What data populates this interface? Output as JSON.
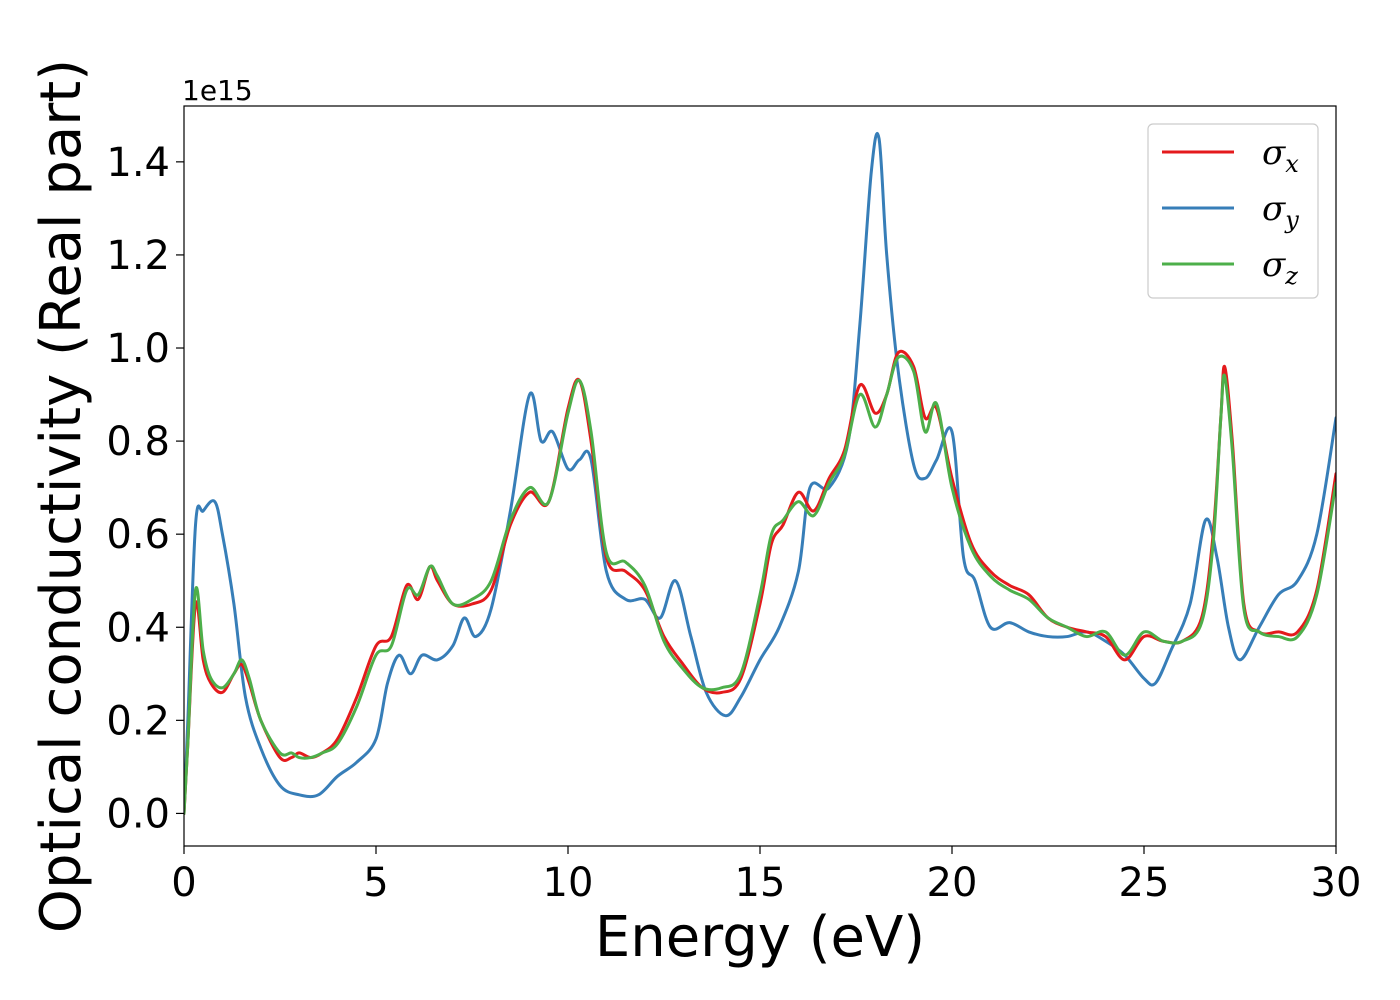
{
  "chart_data": {
    "type": "line",
    "title": "",
    "xlabel": "Energy (eV)",
    "ylabel": "Optical conductivity (Real part)",
    "y_offset_text": "1e15",
    "xlim": [
      0,
      30
    ],
    "ylim": [
      -0.07,
      1.52
    ],
    "xticks": [
      0,
      5,
      10,
      15,
      20,
      25,
      30
    ],
    "xtick_labels": [
      "0",
      "5",
      "10",
      "15",
      "20",
      "25",
      "30"
    ],
    "yticks": [
      0.0,
      0.2,
      0.4,
      0.6,
      0.8,
      1.0,
      1.2,
      1.4
    ],
    "ytick_labels": [
      "0.0",
      "0.2",
      "0.4",
      "0.6",
      "0.8",
      "1.0",
      "1.2",
      "1.4"
    ],
    "grid": false,
    "legend_position": "top-right",
    "series": [
      {
        "name": "σx",
        "symbol": "σ",
        "subscript": "x",
        "color": "#e41a1c",
        "points": [
          [
            0,
            0
          ],
          [
            0.1,
            0.15
          ],
          [
            0.3,
            0.45
          ],
          [
            0.5,
            0.33
          ],
          [
            0.7,
            0.28
          ],
          [
            1.0,
            0.26
          ],
          [
            1.3,
            0.3
          ],
          [
            1.5,
            0.32
          ],
          [
            1.7,
            0.28
          ],
          [
            2.0,
            0.2
          ],
          [
            2.5,
            0.12
          ],
          [
            2.8,
            0.12
          ],
          [
            3.0,
            0.13
          ],
          [
            3.3,
            0.12
          ],
          [
            3.6,
            0.13
          ],
          [
            4.0,
            0.16
          ],
          [
            4.5,
            0.25
          ],
          [
            5.0,
            0.36
          ],
          [
            5.4,
            0.38
          ],
          [
            5.8,
            0.49
          ],
          [
            6.1,
            0.46
          ],
          [
            6.4,
            0.53
          ],
          [
            6.6,
            0.5
          ],
          [
            7.0,
            0.45
          ],
          [
            7.5,
            0.45
          ],
          [
            8.0,
            0.48
          ],
          [
            8.5,
            0.62
          ],
          [
            9.0,
            0.69
          ],
          [
            9.5,
            0.67
          ],
          [
            10.0,
            0.87
          ],
          [
            10.3,
            0.93
          ],
          [
            10.6,
            0.8
          ],
          [
            11.0,
            0.55
          ],
          [
            11.5,
            0.52
          ],
          [
            12.0,
            0.48
          ],
          [
            12.5,
            0.38
          ],
          [
            13.0,
            0.32
          ],
          [
            13.5,
            0.27
          ],
          [
            14.0,
            0.26
          ],
          [
            14.5,
            0.29
          ],
          [
            15.0,
            0.45
          ],
          [
            15.3,
            0.58
          ],
          [
            15.6,
            0.62
          ],
          [
            16.0,
            0.69
          ],
          [
            16.4,
            0.65
          ],
          [
            16.8,
            0.72
          ],
          [
            17.2,
            0.78
          ],
          [
            17.6,
            0.92
          ],
          [
            18.0,
            0.86
          ],
          [
            18.3,
            0.9
          ],
          [
            18.6,
            0.99
          ],
          [
            19.0,
            0.96
          ],
          [
            19.3,
            0.85
          ],
          [
            19.6,
            0.87
          ],
          [
            20.0,
            0.72
          ],
          [
            20.5,
            0.58
          ],
          [
            21.0,
            0.52
          ],
          [
            21.5,
            0.49
          ],
          [
            22.0,
            0.47
          ],
          [
            22.5,
            0.42
          ],
          [
            23.0,
            0.4
          ],
          [
            23.5,
            0.39
          ],
          [
            24.0,
            0.38
          ],
          [
            24.5,
            0.33
          ],
          [
            25.0,
            0.38
          ],
          [
            25.5,
            0.37
          ],
          [
            26.0,
            0.37
          ],
          [
            26.5,
            0.42
          ],
          [
            26.8,
            0.6
          ],
          [
            27.0,
            0.85
          ],
          [
            27.1,
            0.96
          ],
          [
            27.3,
            0.8
          ],
          [
            27.6,
            0.45
          ],
          [
            28.0,
            0.39
          ],
          [
            28.5,
            0.39
          ],
          [
            29.0,
            0.39
          ],
          [
            29.5,
            0.48
          ],
          [
            30.0,
            0.73
          ]
        ]
      },
      {
        "name": "σy",
        "symbol": "σ",
        "subscript": "y",
        "color": "#377eb8",
        "points": [
          [
            0,
            0
          ],
          [
            0.1,
            0.2
          ],
          [
            0.3,
            0.62
          ],
          [
            0.5,
            0.65
          ],
          [
            0.8,
            0.67
          ],
          [
            1.0,
            0.6
          ],
          [
            1.3,
            0.45
          ],
          [
            1.6,
            0.25
          ],
          [
            2.0,
            0.14
          ],
          [
            2.5,
            0.06
          ],
          [
            3.0,
            0.04
          ],
          [
            3.5,
            0.04
          ],
          [
            4.0,
            0.08
          ],
          [
            4.5,
            0.11
          ],
          [
            5.0,
            0.16
          ],
          [
            5.3,
            0.28
          ],
          [
            5.6,
            0.34
          ],
          [
            5.9,
            0.3
          ],
          [
            6.2,
            0.34
          ],
          [
            6.6,
            0.33
          ],
          [
            7.0,
            0.36
          ],
          [
            7.3,
            0.42
          ],
          [
            7.6,
            0.38
          ],
          [
            8.0,
            0.44
          ],
          [
            8.5,
            0.65
          ],
          [
            9.0,
            0.9
          ],
          [
            9.3,
            0.8
          ],
          [
            9.6,
            0.82
          ],
          [
            10.0,
            0.74
          ],
          [
            10.3,
            0.76
          ],
          [
            10.6,
            0.76
          ],
          [
            11.0,
            0.52
          ],
          [
            11.5,
            0.46
          ],
          [
            12.0,
            0.46
          ],
          [
            12.4,
            0.42
          ],
          [
            12.8,
            0.5
          ],
          [
            13.2,
            0.38
          ],
          [
            13.6,
            0.26
          ],
          [
            14.1,
            0.21
          ],
          [
            14.5,
            0.25
          ],
          [
            15.0,
            0.33
          ],
          [
            15.5,
            0.4
          ],
          [
            16.0,
            0.52
          ],
          [
            16.3,
            0.7
          ],
          [
            16.8,
            0.7
          ],
          [
            17.3,
            0.8
          ],
          [
            17.6,
            1.05
          ],
          [
            17.9,
            1.38
          ],
          [
            18.1,
            1.45
          ],
          [
            18.3,
            1.2
          ],
          [
            18.6,
            0.95
          ],
          [
            19.0,
            0.75
          ],
          [
            19.3,
            0.72
          ],
          [
            19.6,
            0.76
          ],
          [
            20.0,
            0.82
          ],
          [
            20.3,
            0.55
          ],
          [
            20.6,
            0.5
          ],
          [
            21.0,
            0.4
          ],
          [
            21.5,
            0.41
          ],
          [
            22.0,
            0.39
          ],
          [
            22.5,
            0.38
          ],
          [
            23.0,
            0.38
          ],
          [
            23.5,
            0.39
          ],
          [
            24.0,
            0.37
          ],
          [
            24.5,
            0.34
          ],
          [
            25.0,
            0.29
          ],
          [
            25.3,
            0.28
          ],
          [
            25.7,
            0.35
          ],
          [
            26.2,
            0.45
          ],
          [
            26.6,
            0.63
          ],
          [
            26.9,
            0.55
          ],
          [
            27.2,
            0.4
          ],
          [
            27.5,
            0.33
          ],
          [
            28.0,
            0.4
          ],
          [
            28.5,
            0.47
          ],
          [
            29.0,
            0.5
          ],
          [
            29.5,
            0.6
          ],
          [
            30.0,
            0.85
          ]
        ]
      },
      {
        "name": "σz",
        "symbol": "σ",
        "subscript": "z",
        "color": "#4daf4a",
        "points": [
          [
            0,
            0
          ],
          [
            0.1,
            0.15
          ],
          [
            0.3,
            0.48
          ],
          [
            0.5,
            0.35
          ],
          [
            0.7,
            0.29
          ],
          [
            1.0,
            0.27
          ],
          [
            1.3,
            0.3
          ],
          [
            1.5,
            0.33
          ],
          [
            1.7,
            0.29
          ],
          [
            2.0,
            0.2
          ],
          [
            2.5,
            0.13
          ],
          [
            2.8,
            0.13
          ],
          [
            3.0,
            0.12
          ],
          [
            3.3,
            0.12
          ],
          [
            3.6,
            0.13
          ],
          [
            4.0,
            0.15
          ],
          [
            4.5,
            0.23
          ],
          [
            5.0,
            0.34
          ],
          [
            5.4,
            0.36
          ],
          [
            5.8,
            0.48
          ],
          [
            6.1,
            0.47
          ],
          [
            6.4,
            0.53
          ],
          [
            6.6,
            0.51
          ],
          [
            7.0,
            0.45
          ],
          [
            7.5,
            0.46
          ],
          [
            8.0,
            0.5
          ],
          [
            8.5,
            0.63
          ],
          [
            9.0,
            0.7
          ],
          [
            9.5,
            0.67
          ],
          [
            10.0,
            0.86
          ],
          [
            10.3,
            0.93
          ],
          [
            10.6,
            0.82
          ],
          [
            11.0,
            0.56
          ],
          [
            11.5,
            0.54
          ],
          [
            12.0,
            0.49
          ],
          [
            12.5,
            0.37
          ],
          [
            13.0,
            0.31
          ],
          [
            13.5,
            0.27
          ],
          [
            14.0,
            0.27
          ],
          [
            14.5,
            0.3
          ],
          [
            15.0,
            0.47
          ],
          [
            15.3,
            0.6
          ],
          [
            15.6,
            0.63
          ],
          [
            16.0,
            0.67
          ],
          [
            16.4,
            0.64
          ],
          [
            16.8,
            0.71
          ],
          [
            17.2,
            0.77
          ],
          [
            17.6,
            0.9
          ],
          [
            18.0,
            0.83
          ],
          [
            18.3,
            0.9
          ],
          [
            18.6,
            0.98
          ],
          [
            19.0,
            0.95
          ],
          [
            19.3,
            0.82
          ],
          [
            19.6,
            0.88
          ],
          [
            20.0,
            0.7
          ],
          [
            20.5,
            0.57
          ],
          [
            21.0,
            0.51
          ],
          [
            21.5,
            0.48
          ],
          [
            22.0,
            0.46
          ],
          [
            22.5,
            0.42
          ],
          [
            23.0,
            0.4
          ],
          [
            23.5,
            0.38
          ],
          [
            24.0,
            0.39
          ],
          [
            24.5,
            0.34
          ],
          [
            25.0,
            0.39
          ],
          [
            25.5,
            0.37
          ],
          [
            26.0,
            0.37
          ],
          [
            26.5,
            0.41
          ],
          [
            26.8,
            0.58
          ],
          [
            27.0,
            0.85
          ],
          [
            27.1,
            0.94
          ],
          [
            27.3,
            0.78
          ],
          [
            27.6,
            0.44
          ],
          [
            28.0,
            0.39
          ],
          [
            28.5,
            0.38
          ],
          [
            29.0,
            0.38
          ],
          [
            29.5,
            0.47
          ],
          [
            30.0,
            0.71
          ]
        ]
      }
    ]
  }
}
